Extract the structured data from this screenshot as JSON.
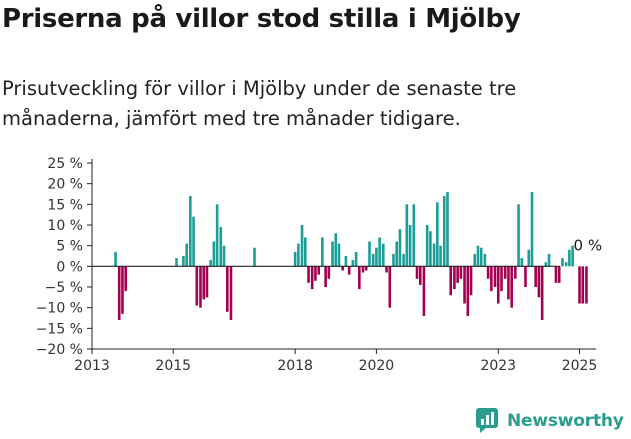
{
  "title": "Priserna på villor stod stilla i Mjölby",
  "subtitle": "Prisutveckling för villor i Mjölby under de senaste tre månaderna, jämfört med tre månader tidigare.",
  "brand": {
    "name": "Newsworthy"
  },
  "colors": {
    "positive": "#1b9e97",
    "negative": "#a3004f",
    "axis": "#222222",
    "grid": "#dddddd"
  },
  "chart_data": {
    "type": "bar",
    "ylim": [
      -20,
      25
    ],
    "xlim": [
      2013.0,
      2025.75
    ],
    "yticks": [
      25,
      20,
      15,
      10,
      5,
      0,
      -5,
      -10,
      -15,
      -20
    ],
    "ytick_labels": [
      "25 %",
      "20 %",
      "15 %",
      "10 %",
      "5 %",
      "0 %",
      "−5 %",
      "−10 %",
      "−15 %",
      "−20 %"
    ],
    "xticks": [
      2013,
      2015,
      2018,
      2020,
      2023,
      2025
    ],
    "xtick_labels": [
      "2013",
      "2015",
      "2018",
      "2020",
      "2023",
      "2025"
    ],
    "annotation": {
      "text": "0 %",
      "x": 2025.0,
      "y": 0
    },
    "x": [
      2013.58,
      2013.67,
      2013.75,
      2013.83,
      2013.92,
      2015.08,
      2015.25,
      2015.33,
      2015.42,
      2015.5,
      2015.58,
      2015.67,
      2015.75,
      2015.83,
      2015.92,
      2016.0,
      2016.08,
      2016.17,
      2016.25,
      2016.33,
      2016.42,
      2016.5,
      2016.58,
      2016.67,
      2016.83,
      2017.0,
      2018.0,
      2018.08,
      2018.17,
      2018.25,
      2018.33,
      2018.42,
      2018.5,
      2018.58,
      2018.67,
      2018.75,
      2018.83,
      2018.92,
      2019.0,
      2019.08,
      2019.17,
      2019.25,
      2019.33,
      2019.42,
      2019.5,
      2019.58,
      2019.67,
      2019.75,
      2019.83,
      2019.92,
      2020.0,
      2020.08,
      2020.17,
      2020.25,
      2020.33,
      2020.42,
      2020.5,
      2020.58,
      2020.67,
      2020.75,
      2020.83,
      2020.92,
      2021.0,
      2021.08,
      2021.17,
      2021.25,
      2021.33,
      2021.42,
      2021.5,
      2021.58,
      2021.67,
      2021.75,
      2021.83,
      2021.92,
      2022.0,
      2022.08,
      2022.17,
      2022.25,
      2022.33,
      2022.42,
      2022.5,
      2022.58,
      2022.67,
      2022.75,
      2022.83,
      2022.92,
      2023.0,
      2023.08,
      2023.17,
      2023.25,
      2023.33,
      2023.42,
      2023.5,
      2023.58,
      2023.67,
      2023.75,
      2023.83,
      2023.92,
      2024.0,
      2024.08,
      2024.17,
      2024.25,
      2024.33,
      2024.42,
      2024.5,
      2024.58,
      2024.67,
      2024.75,
      2024.83,
      2025.0,
      2025.08,
      2025.17,
      2025.25
    ],
    "values": [
      3.5,
      -13,
      -11.5,
      -6,
      0,
      2,
      2.5,
      5.5,
      17,
      12,
      -9.5,
      -10,
      -8,
      -7.5,
      1.5,
      6,
      15,
      9.5,
      5,
      -11,
      -13,
      0,
      0,
      0,
      0,
      4.5,
      3.5,
      5.5,
      10,
      7,
      -4,
      -5.5,
      -3.5,
      -2,
      7,
      -5,
      -3,
      6,
      8,
      5.5,
      -1,
      2.5,
      -2,
      1.5,
      3.5,
      -5.5,
      -1.5,
      -1,
      6,
      3,
      4.5,
      7,
      5.5,
      -1.5,
      -10,
      3,
      6,
      9,
      3,
      15,
      10,
      15,
      -3,
      -4.5,
      -12,
      10,
      8.5,
      5.5,
      15.5,
      5,
      17,
      18,
      -7,
      -5.5,
      -4,
      -3,
      -9,
      -12,
      -7,
      3,
      5,
      4.5,
      3,
      -3,
      -6,
      -5,
      -9,
      -6,
      -3,
      -8,
      -10,
      -3,
      15,
      2,
      -5,
      4,
      18,
      -5,
      -7.5,
      -13,
      1,
      3,
      0,
      -4,
      -4,
      2,
      1,
      4,
      5,
      -9,
      -9,
      -9,
      0
    ]
  }
}
